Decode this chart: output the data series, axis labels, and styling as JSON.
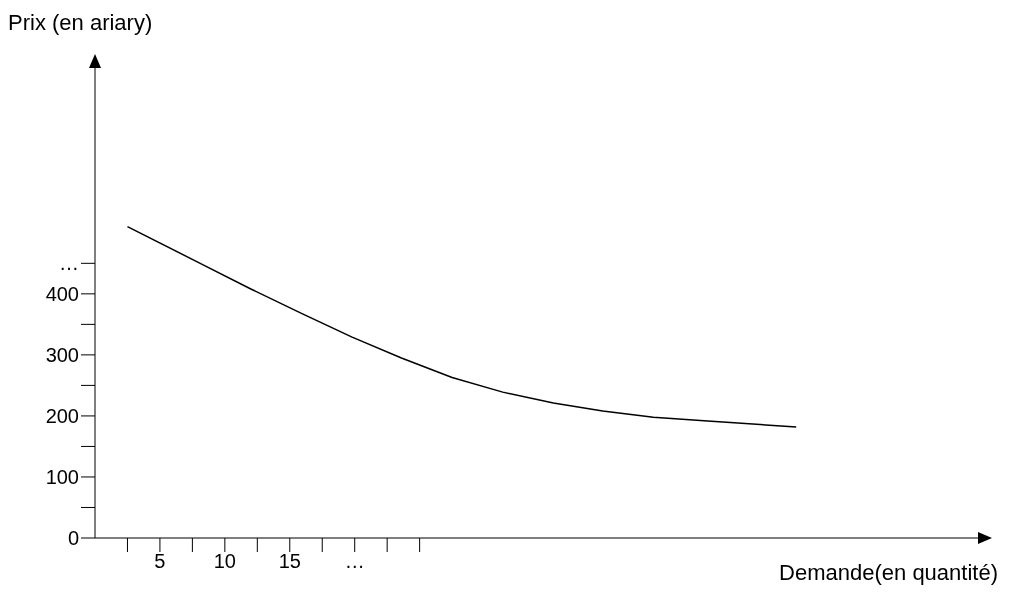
{
  "chart_data": {
    "type": "line",
    "xlabel": "Demande(en quantité)",
    "ylabel": "Prix (en ariary)",
    "x": [
      2.5,
      8.1,
      12.0,
      15.9,
      19.8,
      23.6,
      27.5,
      31.4,
      35.3,
      39.1,
      43.0,
      46.9,
      54.0
    ],
    "series": [
      {
        "color": "#000000",
        "values": [
          510,
          450,
          408,
          368,
          329,
          295,
          263,
          239,
          221,
          208,
          198,
          192,
          182
        ]
      }
    ],
    "xlim": [
      0,
      68
    ],
    "ylim": [
      0,
      770
    ],
    "xticks": [
      {
        "value": 2.5,
        "label": null
      },
      5,
      {
        "value": 7.5,
        "label": null
      },
      10,
      {
        "value": 12.5,
        "label": null
      },
      15,
      {
        "value": 17.5,
        "label": null
      },
      {
        "value": 20,
        "label": "…"
      },
      {
        "value": 22.5,
        "label": null
      },
      {
        "value": 25,
        "label": null
      }
    ],
    "yticks": [
      0,
      {
        "value": 50,
        "label": null
      },
      100,
      {
        "value": 150,
        "label": null
      },
      200,
      {
        "value": 250,
        "label": null
      },
      300,
      {
        "value": 350,
        "label": null
      },
      400,
      {
        "value": 450,
        "label": "…"
      }
    ]
  }
}
